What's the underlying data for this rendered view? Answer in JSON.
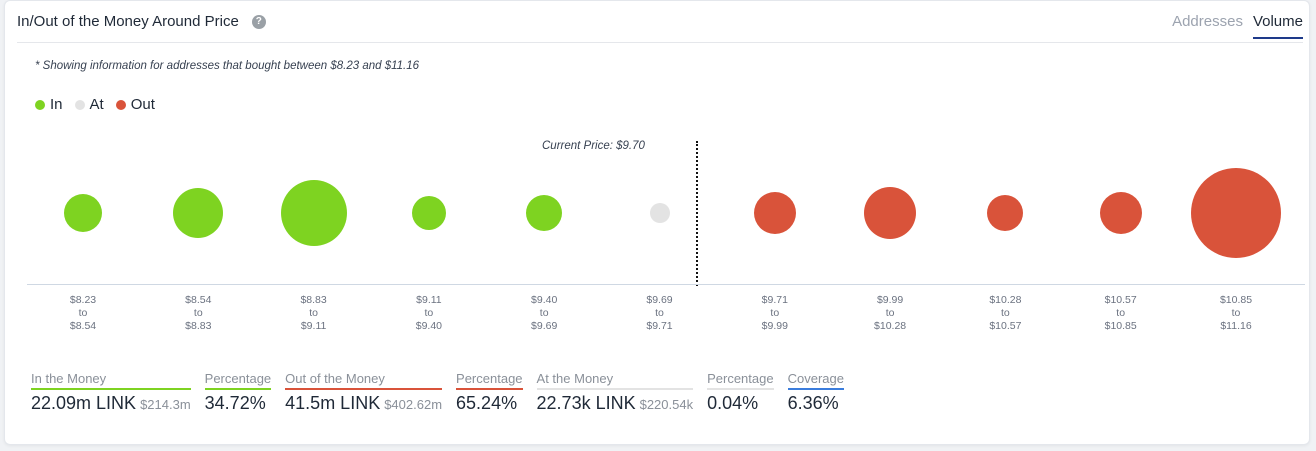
{
  "header": {
    "title": "In/Out of the Money Around Price",
    "help_icon": "?",
    "tabs": [
      {
        "label": "Addresses",
        "active": false
      },
      {
        "label": "Volume",
        "active": true
      }
    ]
  },
  "note": "* Showing information for addresses that bought between $8.23 and $11.16",
  "legend": [
    {
      "label": "In",
      "color": "#7ed321"
    },
    {
      "label": "At",
      "color": "#e3e3e3"
    },
    {
      "label": "Out",
      "color": "#d9533a"
    }
  ],
  "current_price_label": "Current Price: $9.70",
  "colors": {
    "in": "#7ed321",
    "at": "#e3e3e3",
    "out": "#d9533a"
  },
  "chart_data": {
    "type": "scatter",
    "title": "In/Out of the Money Around Price",
    "subtitle": "* Showing information for addresses that bought between $8.23 and $11.16",
    "xlabel": "",
    "ylabel": "",
    "current_price": 9.7,
    "annotation": "Current Price: $9.70",
    "legend": [
      "In",
      "At",
      "Out"
    ],
    "legend_position": "top-left",
    "grid": false,
    "categories": [
      "$8.23 to $8.54",
      "$8.54 to $8.83",
      "$8.83 to $9.11",
      "$9.11 to $9.40",
      "$9.40 to $9.69",
      "$9.69 to $9.71",
      "$9.71 to $9.99",
      "$9.99 to $10.28",
      "$10.28 to $10.57",
      "$10.57 to $10.85",
      "$10.85 to $11.16"
    ],
    "bubbles": [
      {
        "from": "$8.23",
        "to": "$8.54",
        "status": "In",
        "relative_size": 19
      },
      {
        "from": "$8.54",
        "to": "$8.83",
        "status": "In",
        "relative_size": 25
      },
      {
        "from": "$8.83",
        "to": "$9.11",
        "status": "In",
        "relative_size": 33
      },
      {
        "from": "$9.11",
        "to": "$9.40",
        "status": "In",
        "relative_size": 17
      },
      {
        "from": "$9.40",
        "to": "$9.69",
        "status": "In",
        "relative_size": 18
      },
      {
        "from": "$9.69",
        "to": "$9.71",
        "status": "At",
        "relative_size": 10
      },
      {
        "from": "$9.71",
        "to": "$9.99",
        "status": "Out",
        "relative_size": 21
      },
      {
        "from": "$9.99",
        "to": "$10.28",
        "status": "Out",
        "relative_size": 26
      },
      {
        "from": "$10.28",
        "to": "$10.57",
        "status": "Out",
        "relative_size": 18
      },
      {
        "from": "$10.57",
        "to": "$10.85",
        "status": "Out",
        "relative_size": 21
      },
      {
        "from": "$10.85",
        "to": "$11.16",
        "status": "Out",
        "relative_size": 45
      }
    ],
    "summary": {
      "in_the_money": {
        "volume": "22.09m LINK",
        "usd": "$214.3m",
        "percentage": "34.72%"
      },
      "out_of_the_money": {
        "volume": "41.5m LINK",
        "usd": "$402.62m",
        "percentage": "65.24%"
      },
      "at_the_money": {
        "volume": "22.73k LINK",
        "usd": "$220.54k",
        "percentage": "0.04%"
      },
      "coverage": "6.36%"
    }
  },
  "stats": [
    {
      "label": "In the Money",
      "value": "22.09m LINK",
      "sub": "$214.3m",
      "color": "#7ed321"
    },
    {
      "label": "Percentage",
      "value": "34.72%",
      "sub": "",
      "color": "#7ed321"
    },
    {
      "label": "Out of the Money",
      "value": "41.5m LINK",
      "sub": "$402.62m",
      "color": "#d9533a"
    },
    {
      "label": "Percentage",
      "value": "65.24%",
      "sub": "",
      "color": "#d9533a"
    },
    {
      "label": "At the Money",
      "value": "22.73k LINK",
      "sub": "$220.54k",
      "color": "#e3e3e3"
    },
    {
      "label": "Percentage",
      "value": "0.04%",
      "sub": "",
      "color": "#e3e3e3"
    },
    {
      "label": "Coverage",
      "value": "6.36%",
      "sub": "",
      "color": "#3b7ddd"
    }
  ]
}
